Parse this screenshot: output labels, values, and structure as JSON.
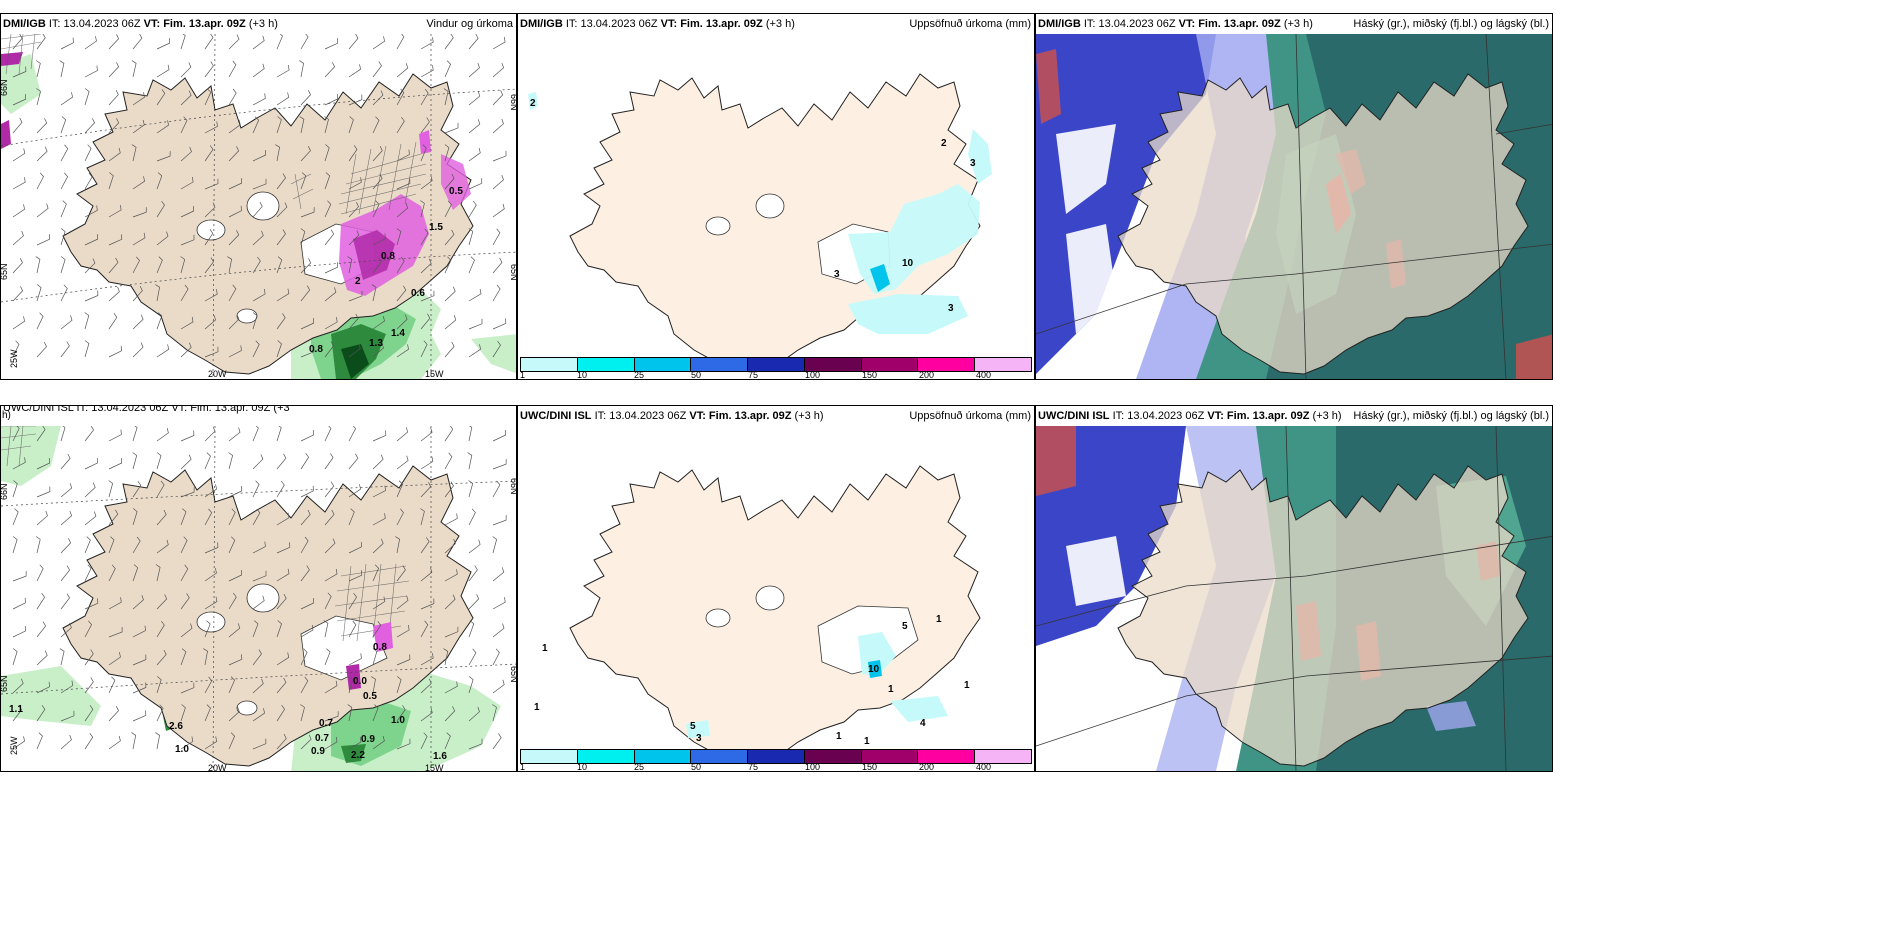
{
  "colors": {
    "land": "#eadbc8",
    "land_light": "#fdf0e2",
    "ocean": "#ffffff",
    "precip_green": [
      "#c9efc9",
      "#7ed48c",
      "#2e8b3e",
      "#0b4d1a"
    ],
    "precip_pink": [
      "#f3a9f3",
      "#e060e0",
      "#b02aa8"
    ],
    "cloud_blue": [
      "#3b45c8",
      "#6a6fd8",
      "#a0a8f0"
    ],
    "cloud_teal": [
      "#2a6a6a",
      "#3f9486",
      "#5fbfa0"
    ],
    "cloud_red": "#c85050",
    "colorbar": [
      "#c6fafa",
      "#00f0f0",
      "#00c4ec",
      "#2e6ae6",
      "#1a2ab0",
      "#6a0050",
      "#a0006a",
      "#ff00a0",
      "#f5b4f5"
    ]
  },
  "panels": [
    {
      "id": "top-wind",
      "title_model": "DMI/IGB",
      "title_it": "IT: 13.04.2023 06Z",
      "title_vt_label": "VT:",
      "title_vt": "Fim. 13.apr. 09Z",
      "title_lead": "(+3 h)",
      "title_right": "Vindur og úrkoma",
      "lat_labels": [
        "65N",
        "66N"
      ],
      "lon_labels": [
        "20W",
        "15W",
        "25W"
      ],
      "value_labels": [
        "0.6",
        "1.4",
        "0.8",
        "1.3",
        "0.5",
        "0.8",
        "1.5",
        "2"
      ]
    },
    {
      "id": "top-precip",
      "title_model": "DMI/IGB",
      "title_it": "IT: 13.04.2023 06Z",
      "title_vt_label": "VT:",
      "title_vt": "Fim. 13.apr. 09Z",
      "title_lead": "(+3 h)",
      "title_right": "Uppsöfnuð úrkoma (mm)",
      "lat_labels": [
        "65N",
        "66N"
      ],
      "value_labels": [
        "2",
        "2",
        "3",
        "3",
        "10",
        "3"
      ]
    },
    {
      "id": "top-cloud",
      "title_model": "DMI/IGB",
      "title_it": "IT: 13.04.2023 06Z",
      "title_vt_label": "VT:",
      "title_vt": "Fim. 13.apr. 09Z",
      "title_lead": "(+3 h)",
      "title_right": "Háský (gr.), miðský (fj.bl.) og lágský (bl.)"
    },
    {
      "id": "bottom-wind",
      "title_partial": "UWC/DINI ISL  IT: 13.04.2023 06Z  VT: Fim. 13.apr. 09Z  (+3",
      "title_wrap": "h)",
      "lat_labels": [
        "66N",
        "65N"
      ],
      "lon_labels": [
        "20W",
        "15W",
        "25W"
      ],
      "value_labels": [
        "1.1",
        "2.6",
        "1.0",
        "0.5",
        "0.7",
        "0.7",
        "1.0",
        "0.9",
        "0.9",
        "2.2",
        "1.6",
        "0.8",
        "0.0"
      ]
    },
    {
      "id": "bottom-precip",
      "title_model": "UWC/DINI ISL",
      "title_it": "IT: 13.04.2023 06Z",
      "title_vt_label": "VT:",
      "title_vt": "Fim. 13.apr. 09Z",
      "title_lead": "(+3 h)",
      "title_right": "Uppsöfnuð úrkoma (mm)",
      "lat_labels": [
        "66N",
        "65N"
      ],
      "value_labels": [
        "1",
        "1",
        "5",
        "1",
        "5",
        "10",
        "1",
        "1",
        "4",
        "1",
        "1",
        "3"
      ]
    },
    {
      "id": "bottom-cloud",
      "title_model": "UWC/DINI ISL",
      "title_it": "IT: 13.04.2023 06Z",
      "title_vt_label": "VT:",
      "title_vt": "Fim. 13.apr. 09Z",
      "title_lead": "(+3 h)",
      "title_right": "Háský (gr.), miðský (fj.bl.) og lágský (bl.)"
    }
  ],
  "colorbar": {
    "ticks": [
      "1",
      "10",
      "25",
      "50",
      "75",
      "100",
      "150",
      "200",
      "400"
    ]
  }
}
